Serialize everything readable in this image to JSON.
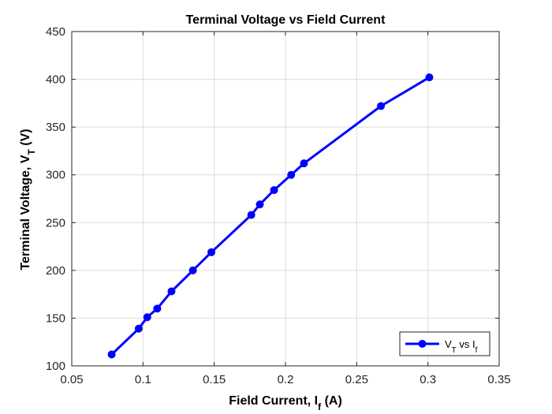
{
  "chart_data": {
    "type": "line",
    "title": "Terminal Voltage vs Field Current",
    "xlabel": {
      "main": "Field Current, I",
      "sub": "f",
      "tail": " (A)"
    },
    "ylabel": {
      "main": "Terminal Voltage, V",
      "sub": "T",
      "tail": " (V)"
    },
    "xlim": [
      0.05,
      0.35
    ],
    "ylim": [
      100,
      450
    ],
    "xticks": [
      "0.05",
      "0.1",
      "0.15",
      "0.2",
      "0.25",
      "0.3",
      "0.35"
    ],
    "yticks": [
      "100",
      "150",
      "200",
      "250",
      "300",
      "350",
      "400",
      "450"
    ],
    "grid": true,
    "legend_position": "bottom-right",
    "series": [
      {
        "legend": {
          "a": "V",
          "a_sub": "T",
          "mid": " vs I",
          "b_sub": "f"
        },
        "color": "#0000FF",
        "marker": "circle",
        "x": [
          0.078,
          0.097,
          0.103,
          0.11,
          0.12,
          0.135,
          0.148,
          0.176,
          0.182,
          0.192,
          0.204,
          0.213,
          0.267,
          0.301
        ],
        "y": [
          112,
          139,
          151,
          160,
          178,
          200,
          219,
          258,
          269,
          284,
          300,
          312,
          372,
          402
        ]
      }
    ]
  }
}
